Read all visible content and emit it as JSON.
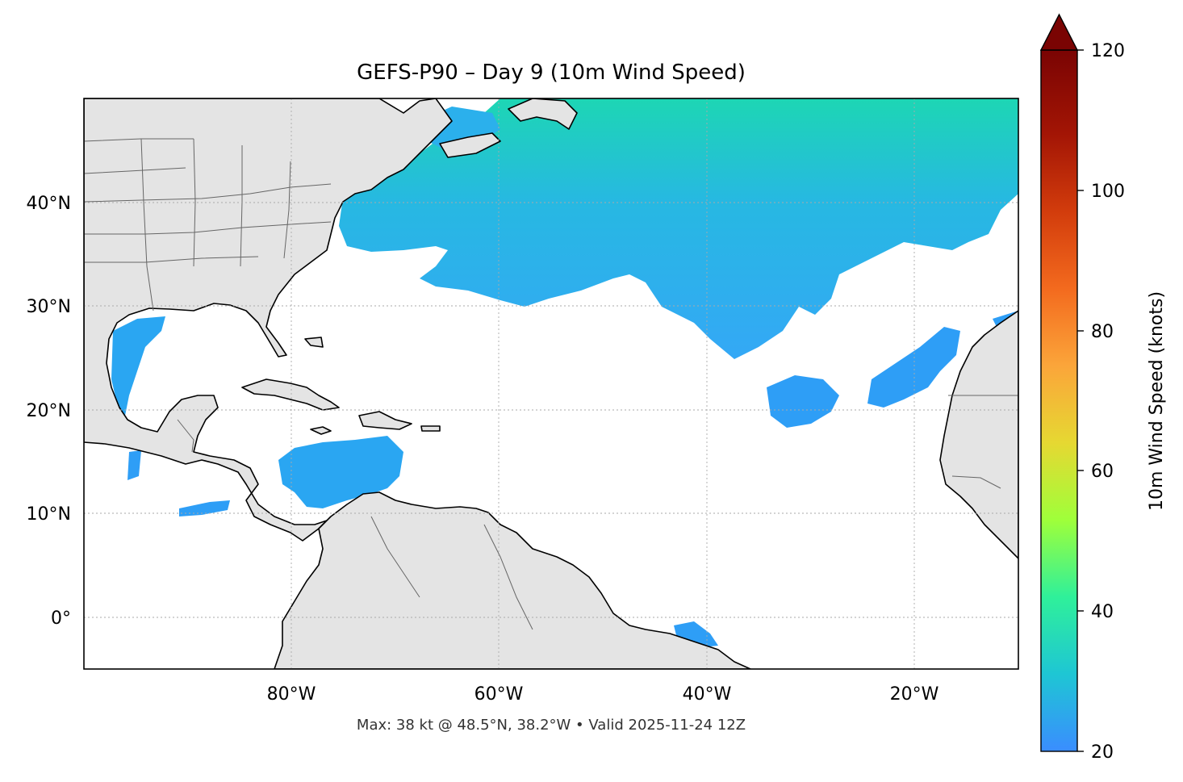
{
  "title": "GEFS-P90 – Day 9 (10m Wind Speed)",
  "footer": "Max: 38 kt @ 48.5°N, 38.2°W • Valid 2025-11-24 12Z",
  "colorbar": {
    "label": "10m Wind Speed (knots)",
    "min": 20,
    "max": 120,
    "extend": "max",
    "ticks": [
      "20",
      "40",
      "60",
      "80",
      "100",
      "120"
    ],
    "colors": [
      "#3a8dff",
      "#1ec6d4",
      "#2ff09a",
      "#9fff3a",
      "#e6d832",
      "#fba53a",
      "#f36a1e",
      "#d23c0c",
      "#a31505",
      "#7a0403"
    ]
  },
  "map": {
    "lon_range": [
      -100,
      -10
    ],
    "lat_range": [
      -5,
      50
    ],
    "land_color": "#e4e4e4",
    "ocean_color": "#ffffff",
    "gridlines": "dotted",
    "lon_labels": [
      {
        "lon": -80,
        "text": "80°W"
      },
      {
        "lon": -60,
        "text": "60°W"
      },
      {
        "lon": -40,
        "text": "40°W"
      },
      {
        "lon": -20,
        "text": "20°W"
      }
    ],
    "lat_labels": [
      {
        "lat": 40,
        "text": "40°N"
      },
      {
        "lat": 30,
        "text": "30°N"
      },
      {
        "lat": 20,
        "text": "20°N"
      },
      {
        "lat": 10,
        "text": "10°N"
      },
      {
        "lat": 0,
        "text": "0°"
      }
    ]
  },
  "wind_field": {
    "max_kt": 38,
    "max_lat": 48.5,
    "max_lon": -38.2
  }
}
